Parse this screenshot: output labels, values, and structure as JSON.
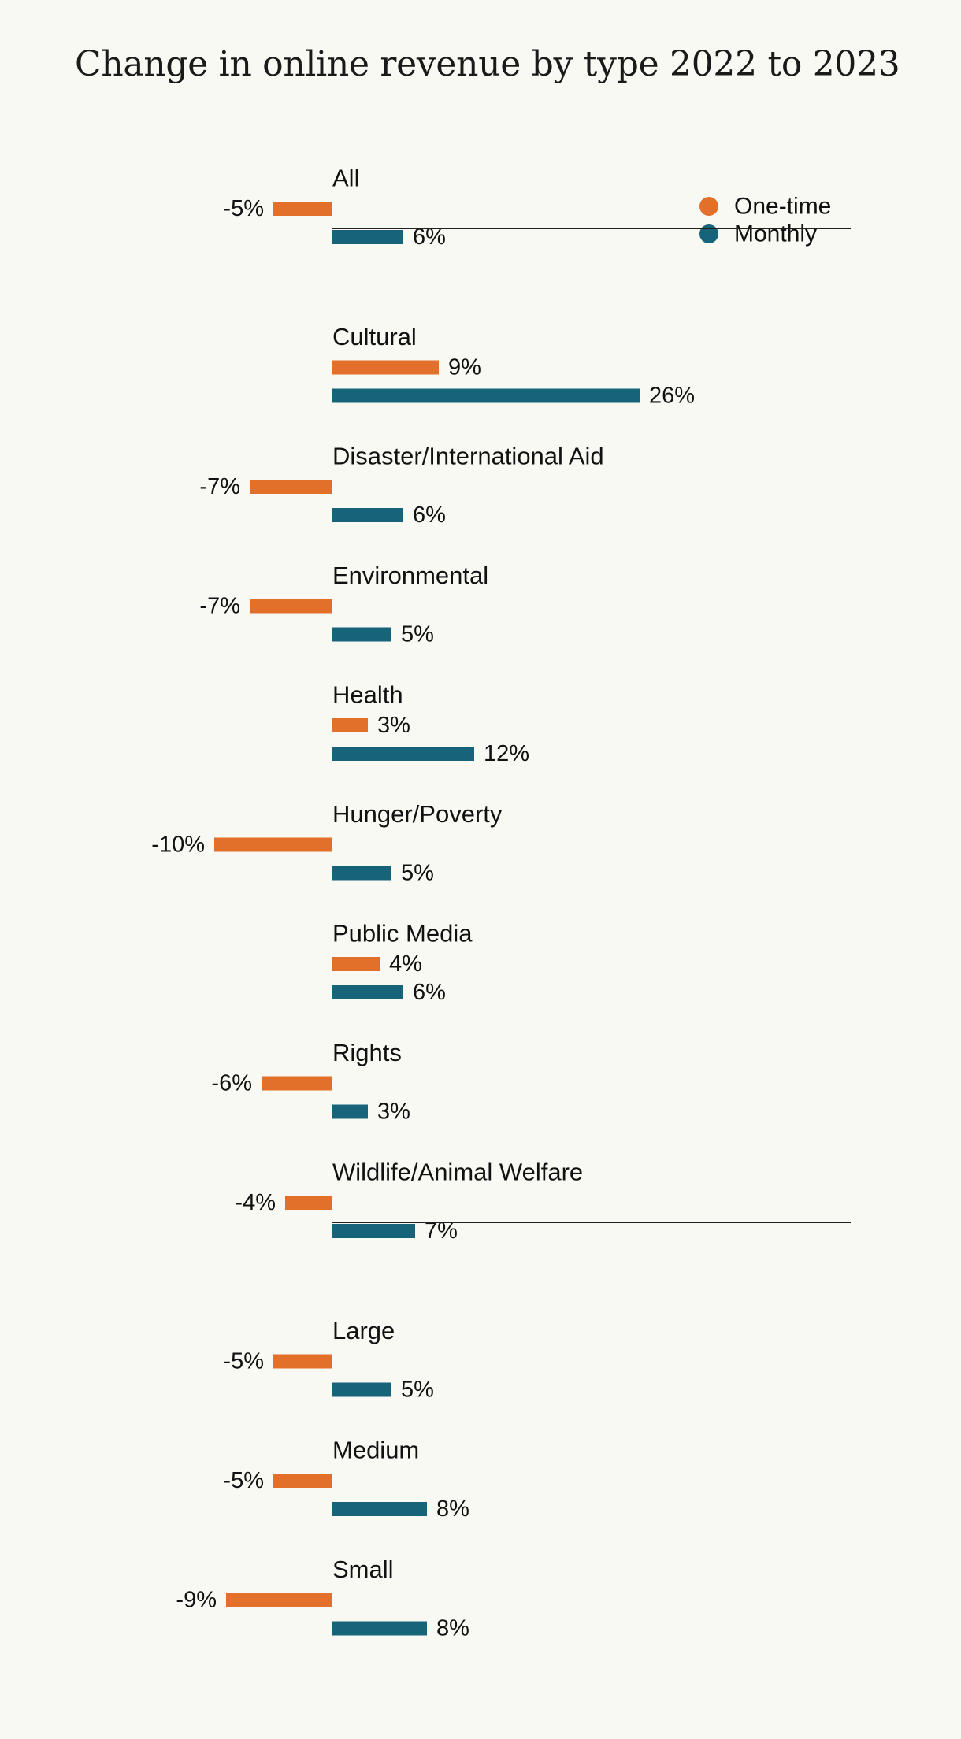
{
  "chart_data": {
    "type": "bar",
    "orientation": "horizontal",
    "title": "Change in online revenue by type 2022 to 2023",
    "xlabel": "",
    "ylabel": "",
    "value_format": "percent",
    "grid": false,
    "legend_position": "top-right",
    "colors": {
      "One-time": "#e3702a",
      "Monthly": "#17647a",
      "divider": "#222222",
      "text": "#111111"
    },
    "series": [
      {
        "name": "One-time",
        "values": [
          -5,
          9,
          -7,
          -7,
          3,
          -10,
          4,
          -6,
          -4,
          -5,
          -5,
          -9
        ]
      },
      {
        "name": "Monthly",
        "values": [
          6,
          26,
          6,
          5,
          12,
          5,
          6,
          3,
          7,
          5,
          8,
          8
        ]
      }
    ],
    "categories": [
      "All",
      "Cultural",
      "Disaster/International Aid",
      "Environmental",
      "Health",
      "Hunger/Poverty",
      "Public Media",
      "Rights",
      "Wildlife/Animal Welfare",
      "Large",
      "Medium",
      "Small"
    ],
    "groups": [
      {
        "categories": [
          "All"
        ]
      },
      {
        "categories": [
          "Cultural",
          "Disaster/International Aid",
          "Environmental",
          "Health",
          "Hunger/Poverty",
          "Public Media",
          "Rights",
          "Wildlife/Animal Welfare"
        ]
      },
      {
        "categories": [
          "Large",
          "Medium",
          "Small"
        ]
      }
    ]
  }
}
